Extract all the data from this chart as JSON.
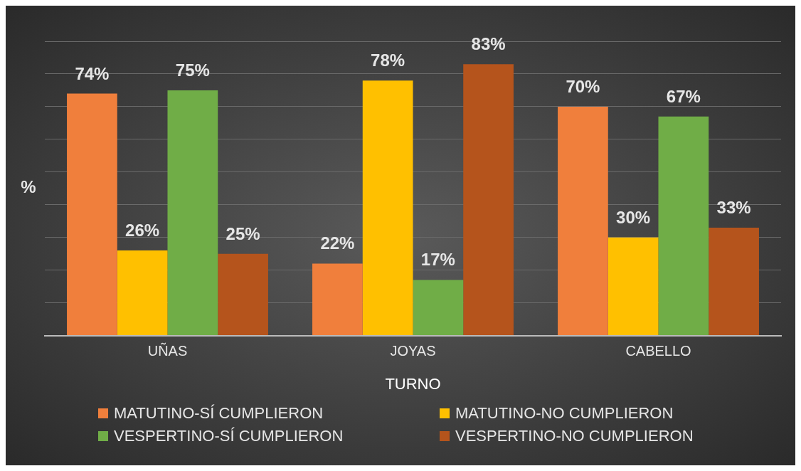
{
  "chart_data": {
    "type": "bar",
    "xlabel": "TURNO",
    "ylabel": "%",
    "categories": [
      "UÑAS",
      "JOYAS",
      "CABELLO"
    ],
    "series": [
      {
        "name": "MATUTINO-SÍ CUMPLIERON",
        "color": "#f07f3c",
        "values": [
          74,
          22,
          70
        ],
        "value_labels": [
          "74%",
          "22%",
          "70%"
        ]
      },
      {
        "name": "MATUTINO-NO CUMPLIERON",
        "color": "#ffc000",
        "values": [
          26,
          78,
          30
        ],
        "value_labels": [
          "26%",
          "78%",
          "30%"
        ]
      },
      {
        "name": "VESPERTINO-SÍ CUMPLIERON",
        "color": "#70ad47",
        "values": [
          75,
          17,
          67
        ],
        "value_labels": [
          "75%",
          "17%",
          "67%"
        ]
      },
      {
        "name": "VESPERTINO-NO CUMPLIERON",
        "color": "#b5541c",
        "values": [
          25,
          83,
          33
        ],
        "value_labels": [
          "25%",
          "83%",
          "33%"
        ]
      }
    ],
    "grid": "y",
    "legend": "bottom",
    "tick_labels": "x"
  }
}
